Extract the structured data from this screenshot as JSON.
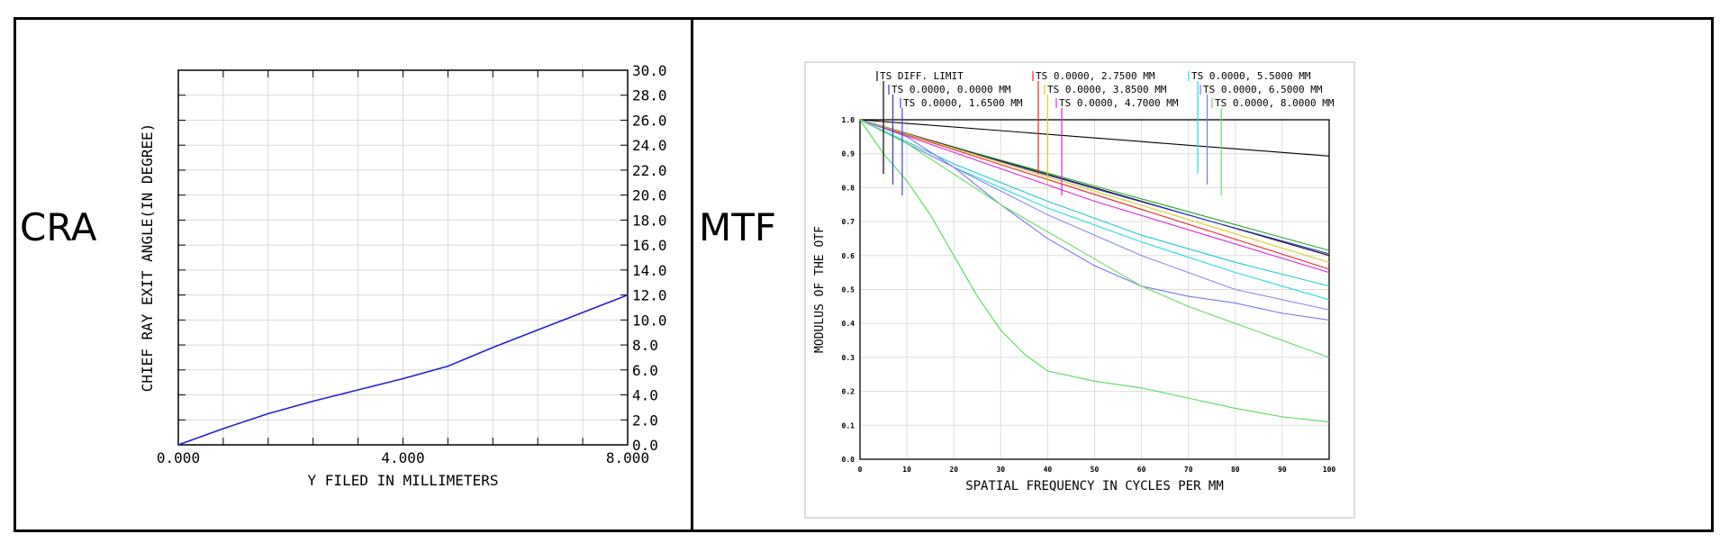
{
  "panels": {
    "left_label": "CRA",
    "right_label": "MTF"
  },
  "chart_data": [
    {
      "type": "line",
      "xlabel": "Y FILED IN MILLIMETERS",
      "ylabel": "CHIEF RAY EXIT ANGLE(IN DEGREE)",
      "xlim": [
        0,
        8
      ],
      "ylim": [
        0,
        30
      ],
      "x_ticks": [
        "0.000",
        "4.000",
        "8.000"
      ],
      "y_ticks": [
        "0.0",
        "2.0",
        "4.0",
        "6.0",
        "8.0",
        "10.0",
        "12.0",
        "14.0",
        "16.0",
        "18.0",
        "20.0",
        "22.0",
        "24.0",
        "26.0",
        "28.0",
        "30.0"
      ],
      "y_axis_side": "right",
      "grid": true,
      "series": [
        {
          "color": "#2020d0",
          "x": [
            0,
            0.8,
            1.6,
            2.4,
            3.2,
            4.0,
            4.8,
            5.6,
            6.4,
            7.2,
            8.0
          ],
          "y": [
            0,
            1.3,
            2.5,
            3.5,
            4.4,
            5.3,
            6.3,
            7.8,
            9.2,
            10.6,
            12.0
          ]
        }
      ]
    },
    {
      "type": "line",
      "xlabel": "SPATIAL FREQUENCY IN CYCLES PER MM",
      "ylabel": "MODULUS OF THE OTF",
      "xlim": [
        0,
        100
      ],
      "ylim": [
        0,
        1
      ],
      "x_ticks": [
        "0",
        "10",
        "20",
        "30",
        "40",
        "50",
        "60",
        "70",
        "80",
        "90",
        "100"
      ],
      "y_ticks": [
        "0.0",
        "0.1",
        "0.2",
        "0.3",
        "0.4",
        "0.5",
        "0.6",
        "0.7",
        "0.8",
        "0.9",
        "1.0"
      ],
      "grid": true,
      "legend": [
        {
          "label": "TS DIFF. LIMIT",
          "color": "#000000",
          "marker_x": 5
        },
        {
          "label": "TS 0.0000, 0.0000 MM",
          "color": "#3333cc",
          "marker_x": 7
        },
        {
          "label": "TS 0.0000, 1.6500 MM",
          "color": "#4444ee",
          "marker_x": 9
        },
        {
          "label": "TS 0.0000, 2.7500 MM",
          "color": "#ee2222",
          "marker_x": 38
        },
        {
          "label": "TS 0.0000, 3.8500 MM",
          "color": "#ddcc22",
          "marker_x": 40
        },
        {
          "label": "TS 0.0000, 4.7000 MM",
          "color": "#dd22dd",
          "marker_x": 43
        },
        {
          "label": "TS 0.0000, 5.5000 MM",
          "color": "#22dddd",
          "marker_x": 72
        },
        {
          "label": "TS 0.0000, 6.5000 MM",
          "color": "#7777ee",
          "marker_x": 74
        },
        {
          "label": "TS 0.0000, 8.0000 MM",
          "color": "#66dd66",
          "marker_x": 77
        }
      ],
      "series": [
        {
          "color": "#000000",
          "x": [
            0,
            100
          ],
          "y": [
            1.0,
            0.893
          ]
        },
        {
          "color": "#22aa22",
          "x": [
            0,
            25,
            50,
            75,
            100
          ],
          "y": [
            1.0,
            0.9,
            0.805,
            0.71,
            0.615
          ]
        },
        {
          "color": "#111111",
          "x": [
            0,
            25,
            50,
            75,
            100
          ],
          "y": [
            1.0,
            0.898,
            0.8,
            0.7,
            0.6
          ]
        },
        {
          "color": "#3333cc",
          "x": [
            0,
            25,
            50,
            75,
            100
          ],
          "y": [
            1.0,
            0.897,
            0.797,
            0.7,
            0.605
          ]
        },
        {
          "color": "#ee2222",
          "x": [
            0,
            25,
            50,
            75,
            100
          ],
          "y": [
            1.0,
            0.89,
            0.78,
            0.67,
            0.56
          ]
        },
        {
          "color": "#ddcc22",
          "x": [
            0,
            25,
            50,
            75,
            100
          ],
          "y": [
            1.0,
            0.895,
            0.79,
            0.685,
            0.58
          ]
        },
        {
          "color": "#dd22dd",
          "x": [
            0,
            25,
            50,
            75,
            100
          ],
          "y": [
            1.0,
            0.88,
            0.76,
            0.655,
            0.55
          ]
        },
        {
          "color": "#22dddd",
          "x": [
            0,
            20,
            40,
            60,
            80,
            100
          ],
          "y": [
            1.0,
            0.86,
            0.74,
            0.64,
            0.55,
            0.47
          ]
        },
        {
          "color": "#22cccc",
          "x": [
            0,
            20,
            40,
            60,
            80,
            100
          ],
          "y": [
            1.0,
            0.87,
            0.76,
            0.66,
            0.58,
            0.51
          ]
        },
        {
          "color": "#7777ee",
          "x": [
            0,
            10,
            20,
            30,
            40,
            50,
            60,
            70,
            80,
            90,
            100
          ],
          "y": [
            1.0,
            0.95,
            0.86,
            0.75,
            0.65,
            0.57,
            0.51,
            0.48,
            0.46,
            0.43,
            0.41
          ]
        },
        {
          "color": "#8888ee",
          "x": [
            0,
            20,
            40,
            60,
            80,
            100
          ],
          "y": [
            1.0,
            0.86,
            0.72,
            0.6,
            0.5,
            0.44
          ]
        },
        {
          "color": "#66dd66",
          "x": [
            0,
            10,
            20,
            30,
            40,
            50,
            60,
            70,
            80,
            90,
            100
          ],
          "y": [
            1.0,
            0.93,
            0.84,
            0.75,
            0.67,
            0.59,
            0.51,
            0.45,
            0.4,
            0.35,
            0.3
          ]
        },
        {
          "color": "#55dd55",
          "x": [
            0,
            5,
            10,
            15,
            20,
            25,
            30,
            35,
            40,
            50,
            60,
            70,
            80,
            90,
            100
          ],
          "y": [
            1.0,
            0.9,
            0.82,
            0.72,
            0.6,
            0.48,
            0.38,
            0.31,
            0.26,
            0.23,
            0.21,
            0.18,
            0.15,
            0.125,
            0.11
          ]
        }
      ]
    }
  ]
}
